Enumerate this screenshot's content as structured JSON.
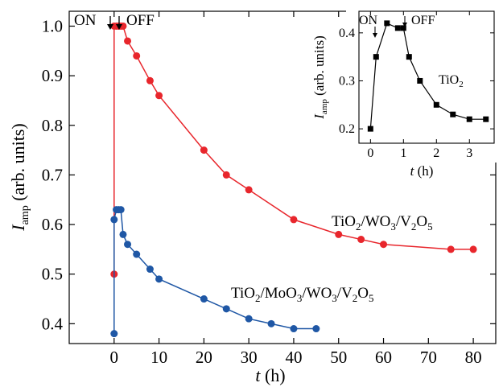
{
  "colors": {
    "series_red": "#e8262c",
    "series_blue": "#1f57a5",
    "inset_series": "#000000"
  },
  "chart_data": [
    {
      "type": "line",
      "xlabel": "t (h)",
      "ylabel": "I_amp (arb. units)",
      "xlim": [
        -10,
        85
      ],
      "ylim": [
        0.36,
        1.03
      ],
      "x_ticks": [
        0,
        10,
        20,
        30,
        40,
        50,
        60,
        70,
        80
      ],
      "y_ticks": [
        0.4,
        0.5,
        0.6,
        0.7,
        0.8,
        0.9,
        1.0
      ],
      "x_tick_labels": [
        "0",
        "10",
        "20",
        "30",
        "40",
        "50",
        "60",
        "70",
        "80"
      ],
      "y_tick_labels": [
        "0.4",
        "0.5",
        "0.6",
        "0.7",
        "0.8",
        "0.9",
        "1.0"
      ],
      "grid": false,
      "annotations": {
        "on": "ON",
        "off": "OFF"
      },
      "series": [
        {
          "name": "TiO2/WO3/V2O5",
          "color": "red",
          "points": [
            [
              0,
              0.5
            ],
            [
              0,
              1.0
            ],
            [
              0.5,
              1.0
            ],
            [
              1,
              1.0
            ],
            [
              1.5,
              1.0
            ],
            [
              2,
              1.0
            ],
            [
              3,
              0.97
            ],
            [
              5,
              0.94
            ],
            [
              8,
              0.89
            ],
            [
              10,
              0.86
            ],
            [
              20,
              0.75
            ],
            [
              25,
              0.7
            ],
            [
              30,
              0.67
            ],
            [
              40,
              0.61
            ],
            [
              50,
              0.58
            ],
            [
              55,
              0.57
            ],
            [
              60,
              0.56
            ],
            [
              75,
              0.55
            ],
            [
              80,
              0.55
            ]
          ]
        },
        {
          "name": "TiO2/MoO3/WO3/V2O5",
          "color": "blue",
          "points": [
            [
              0,
              0.38
            ],
            [
              0,
              0.61
            ],
            [
              0.5,
              0.63
            ],
            [
              1,
              0.63
            ],
            [
              1.5,
              0.63
            ],
            [
              2,
              0.58
            ],
            [
              3,
              0.56
            ],
            [
              5,
              0.54
            ],
            [
              8,
              0.51
            ],
            [
              10,
              0.49
            ],
            [
              20,
              0.45
            ],
            [
              25,
              0.43
            ],
            [
              30,
              0.41
            ],
            [
              35,
              0.4
            ],
            [
              40,
              0.39
            ],
            [
              45,
              0.39
            ]
          ]
        }
      ]
    },
    {
      "type": "line",
      "inset": true,
      "xlabel": "t (h)",
      "ylabel": "I_amp (arb. units)",
      "xlim": [
        -0.35,
        3.75
      ],
      "ylim": [
        0.17,
        0.445
      ],
      "x_ticks": [
        0,
        1,
        2,
        3
      ],
      "y_ticks": [
        0.2,
        0.3,
        0.4
      ],
      "x_tick_labels": [
        "0",
        "1",
        "2",
        "3"
      ],
      "y_tick_labels": [
        "0.2",
        "0.3",
        "0.4"
      ],
      "grid": false,
      "annotations": {
        "on": "ON",
        "off": "OFF",
        "label": "TiO2"
      },
      "series": [
        {
          "color": "black",
          "marker": "square",
          "points": [
            [
              0,
              0.2
            ],
            [
              0.17,
              0.35
            ],
            [
              0.5,
              0.42
            ],
            [
              0.83,
              0.41
            ],
            [
              1,
              0.41
            ],
            [
              1.17,
              0.35
            ],
            [
              1.5,
              0.3
            ],
            [
              2,
              0.25
            ],
            [
              2.5,
              0.23
            ],
            [
              3,
              0.22
            ],
            [
              3.5,
              0.22
            ]
          ]
        }
      ]
    }
  ],
  "text": {
    "main_xlabel_var": "t",
    "main_xlabel_unit": " (h)",
    "ylabel_var": "I",
    "ylabel_sub": "amp",
    "ylabel_unit": " (arb. units)",
    "on": "ON",
    "off": "OFF",
    "label_red_parts": [
      "TiO",
      "2",
      "/WO",
      "3",
      "/V",
      "2",
      "O",
      "5"
    ],
    "label_blue_parts": [
      "TiO",
      "2",
      "/MoO",
      "3",
      "/WO",
      "3",
      "/V",
      "2",
      "O",
      "5"
    ],
    "inset_xlabel_var": "t",
    "inset_xlabel_unit": " (h)",
    "inset_label_parts": [
      "TiO",
      "2"
    ],
    "inset_on": "ON",
    "inset_off": "OFF"
  }
}
